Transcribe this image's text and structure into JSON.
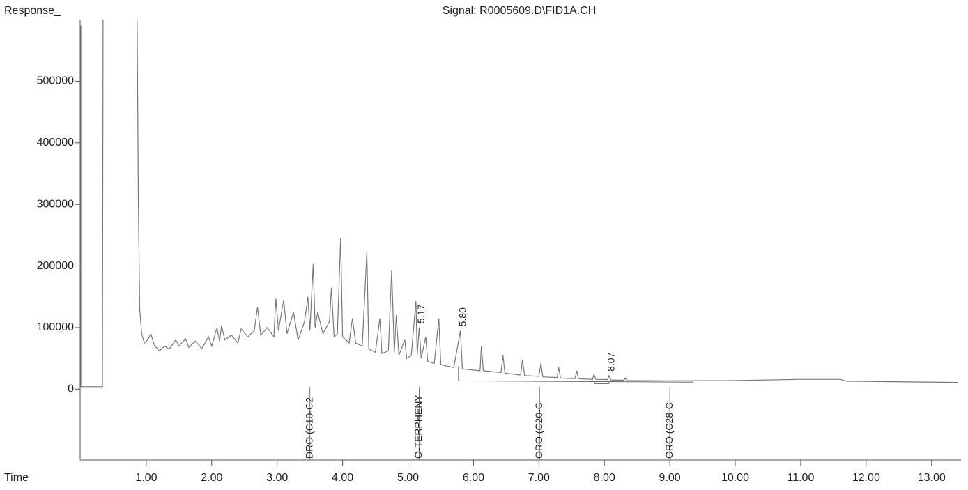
{
  "chart_data": {
    "type": "line",
    "title": "Signal: R0005609.D\\FID1A.CH",
    "ylabel": "Response_",
    "xlabel": "Time",
    "color": "#777777",
    "x": [
      0,
      0,
      0.33,
      0.34,
      null,
      0.86,
      0.88,
      0.9,
      0.93,
      0.97,
      1.02,
      1.07,
      1.12,
      1.2,
      1.28,
      1.35,
      1.45,
      1.5,
      1.6,
      1.65,
      1.75,
      1.85,
      1.95,
      2.0,
      2.08,
      2.12,
      2.15,
      2.2,
      2.3,
      2.4,
      2.45,
      2.55,
      2.65,
      2.7,
      2.75,
      2.85,
      2.95,
      2.98,
      3.02,
      3.1,
      3.15,
      3.25,
      3.32,
      3.42,
      3.47,
      3.5,
      3.55,
      3.58,
      3.62,
      3.7,
      3.8,
      3.83,
      3.87,
      3.92,
      3.97,
      4.0,
      4.1,
      4.15,
      4.2,
      4.3,
      4.37,
      4.4,
      4.5,
      4.57,
      4.6,
      4.7,
      4.75,
      4.79,
      4.82,
      4.86,
      4.95,
      4.98,
      5.05,
      5.12,
      5.14,
      5.17,
      5.2,
      5.27,
      5.3,
      5.4,
      5.47,
      5.5,
      5.7,
      5.8,
      5.83,
      6.1,
      6.12,
      6.15,
      6.42,
      6.45,
      6.48,
      6.72,
      6.75,
      6.78,
      7.0,
      7.03,
      7.06,
      7.28,
      7.3,
      7.33,
      7.55,
      7.58,
      7.6,
      7.82,
      7.84,
      7.87,
      8.05,
      8.07,
      8.1,
      8.3,
      8.32,
      8.35,
      9.0,
      10.0,
      11.0,
      11.6,
      11.7,
      13.4
    ],
    "values": [
      590000,
      4000,
      4000,
      600000,
      null,
      600000,
      300000,
      130000,
      90000,
      75000,
      80000,
      90000,
      72000,
      62000,
      70000,
      65000,
      80000,
      70000,
      82000,
      68000,
      78000,
      66000,
      85000,
      70000,
      100000,
      78000,
      103000,
      80000,
      88000,
      75000,
      98000,
      85000,
      95000,
      133000,
      88000,
      100000,
      85000,
      147000,
      95000,
      145000,
      90000,
      125000,
      80000,
      110000,
      150000,
      95000,
      203000,
      100000,
      125000,
      90000,
      110000,
      165000,
      85000,
      90000,
      245000,
      85000,
      75000,
      115000,
      75000,
      70000,
      222000,
      65000,
      60000,
      115000,
      58000,
      62000,
      193000,
      60000,
      120000,
      55000,
      80000,
      50000,
      55000,
      143000,
      55000,
      100000,
      50000,
      85000,
      45000,
      42000,
      115000,
      40000,
      35000,
      95000,
      33000,
      30000,
      70000,
      30000,
      27000,
      55000,
      26000,
      23000,
      48000,
      22000,
      21000,
      42000,
      20000,
      19000,
      36000,
      18000,
      17000,
      30000,
      17000,
      16000,
      24000,
      16000,
      15500,
      22000,
      15000,
      14500,
      18000,
      14000,
      13500,
      14000,
      16000,
      16000,
      13000,
      11000
    ],
    "baselines": [
      {
        "x": [
          5.77,
          5.77,
          9.36
        ],
        "values": [
          37000,
          13500,
          11500
        ]
      },
      {
        "x": [
          7.85,
          7.85,
          8.07,
          8.07
        ],
        "values": [
          13000,
          9000,
          9000,
          13000
        ]
      }
    ],
    "peak_labels": [
      {
        "value": 5.17,
        "label": "5.17",
        "height": 100000
      },
      {
        "value": 5.8,
        "label": "5.80",
        "height": 95000
      },
      {
        "value": 8.07,
        "label": "8.07",
        "height": 22000
      }
    ],
    "compounds": [
      {
        "x": 3.5,
        "label": "DRO (C10-C2"
      },
      {
        "x": 5.17,
        "label": "O-TERPHENY"
      },
      {
        "x": 7.01,
        "label": "ORO (C20-C"
      },
      {
        "x": 9.0,
        "label": "ORO (C28-C"
      }
    ],
    "xlim": [
      0,
      13.45
    ],
    "ylim": [
      -115000,
      600000
    ],
    "xticks": [
      {
        "value": 1,
        "label": "1.00"
      },
      {
        "value": 2,
        "label": "2.00"
      },
      {
        "value": 3,
        "label": "3.00"
      },
      {
        "value": 4,
        "label": "4.00"
      },
      {
        "value": 5,
        "label": "5.00"
      },
      {
        "value": 6,
        "label": "6.00"
      },
      {
        "value": 7,
        "label": "7.00"
      },
      {
        "value": 8,
        "label": "8.00"
      },
      {
        "value": 9,
        "label": "9.00"
      },
      {
        "value": 10,
        "label": "10.00"
      },
      {
        "value": 11,
        "label": "11.00"
      },
      {
        "value": 12,
        "label": "12.00"
      },
      {
        "value": 13,
        "label": "13.00"
      }
    ],
    "yticks": [
      0,
      100000,
      200000,
      300000,
      400000,
      500000
    ]
  }
}
